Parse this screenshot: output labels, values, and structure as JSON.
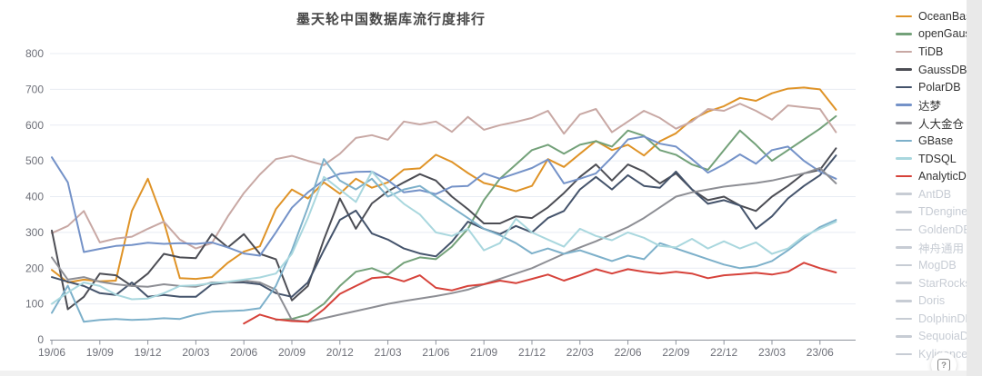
{
  "help": {
    "label": "?"
  },
  "axis": {
    "label_color": "#6e7079",
    "line_color": "#8e939c",
    "grid_color": "#e8ecf3"
  },
  "chart_data": {
    "type": "line",
    "title": "墨天轮中国数据库流行度排行",
    "x_start_month": "19/06",
    "x_step": "1 month",
    "x_tick_labels": [
      "19/06",
      "19/09",
      "19/12",
      "20/03",
      "20/06",
      "20/09",
      "20/12",
      "21/03",
      "21/06",
      "21/09",
      "21/12",
      "22/03",
      "22/06",
      "22/09",
      "22/12",
      "23/03",
      "23/06"
    ],
    "ylim": [
      0,
      800
    ],
    "y_ticks": [
      0,
      100,
      200,
      300,
      400,
      500,
      600,
      700,
      800
    ],
    "grid": true,
    "legend_position": "right",
    "series": [
      {
        "name": "OceanBase",
        "color": "#df9327",
        "enabled": true,
        "start_index": 0,
        "values": [
          195,
          160,
          168,
          163,
          165,
          360,
          450,
          330,
          172,
          170,
          175,
          215,
          246,
          261,
          365,
          420,
          395,
          440,
          408,
          450,
          425,
          440,
          476,
          479,
          517,
          497,
          466,
          438,
          428,
          415,
          430,
          505,
          483,
          520,
          556,
          530,
          545,
          515,
          555,
          577,
          615,
          638,
          653,
          676,
          668,
          689,
          702,
          705,
          700,
          643
        ]
      },
      {
        "name": "openGauss",
        "color": "#73a179",
        "enabled": true,
        "start_index": 14,
        "values": [
          55,
          58,
          70,
          100,
          150,
          190,
          200,
          182,
          215,
          230,
          225,
          260,
          310,
          390,
          450,
          490,
          530,
          545,
          520,
          545,
          555,
          540,
          585,
          570,
          530,
          517,
          490,
          475,
          530,
          585,
          545,
          500,
          530,
          560,
          590,
          625
        ]
      },
      {
        "name": "TiDB",
        "color": "#c8a8a4",
        "enabled": true,
        "start_index": 0,
        "values": [
          298,
          318,
          360,
          272,
          283,
          288,
          310,
          330,
          280,
          255,
          270,
          345,
          410,
          462,
          505,
          514,
          500,
          488,
          520,
          564,
          572,
          559,
          610,
          602,
          610,
          581,
          623,
          587,
          600,
          609,
          620,
          640,
          576,
          630,
          645,
          580,
          610,
          640,
          620,
          590,
          610,
          645,
          640,
          660,
          640,
          615,
          655,
          650,
          645,
          580
        ]
      },
      {
        "name": "GaussDB",
        "color": "#4c4d54",
        "enabled": true,
        "start_index": 0,
        "values": [
          305,
          85,
          120,
          185,
          180,
          150,
          185,
          240,
          230,
          228,
          295,
          258,
          295,
          240,
          225,
          110,
          150,
          280,
          395,
          310,
          381,
          415,
          440,
          463,
          445,
          400,
          365,
          325,
          325,
          345,
          340,
          370,
          410,
          455,
          490,
          445,
          490,
          470,
          437,
          465,
          420,
          390,
          400,
          375,
          360,
          400,
          430,
          465,
          475,
          535
        ]
      },
      {
        "name": "PolarDB",
        "color": "#44536b",
        "enabled": true,
        "start_index": 0,
        "values": [
          175,
          162,
          150,
          130,
          125,
          160,
          120,
          125,
          120,
          120,
          155,
          160,
          160,
          155,
          130,
          120,
          160,
          250,
          335,
          361,
          297,
          280,
          255,
          241,
          233,
          274,
          330,
          310,
          295,
          318,
          300,
          340,
          360,
          420,
          455,
          420,
          460,
          430,
          425,
          470,
          420,
          380,
          390,
          375,
          310,
          345,
          395,
          430,
          460,
          515
        ]
      },
      {
        "name": "达梦",
        "color": "#7492c8",
        "enabled": true,
        "start_index": 0,
        "values": [
          510,
          440,
          245,
          254,
          262,
          265,
          271,
          268,
          270,
          268,
          272,
          258,
          241,
          235,
          300,
          369,
          412,
          446,
          464,
          469,
          470,
          446,
          412,
          418,
          407,
          428,
          430,
          465,
          450,
          465,
          480,
          504,
          437,
          450,
          465,
          510,
          560,
          568,
          548,
          540,
          505,
          467,
          490,
          518,
          492,
          530,
          540,
          500,
          470,
          450
        ]
      },
      {
        "name": "人大金仓",
        "color": "#8d8e94",
        "enabled": true,
        "start_index": 0,
        "values": [
          230,
          168,
          175,
          162,
          155,
          150,
          148,
          155,
          150,
          148,
          160,
          160,
          165,
          160,
          140,
          55,
          50,
          60,
          70,
          80,
          90,
          100,
          108,
          115,
          122,
          130,
          140,
          155,
          170,
          185,
          200,
          220,
          240,
          258,
          275,
          295,
          315,
          340,
          370,
          400,
          412,
          420,
          428,
          433,
          438,
          445,
          455,
          465,
          480,
          437
        ]
      },
      {
        "name": "GBase",
        "color": "#7db0ca",
        "enabled": true,
        "start_index": 0,
        "values": [
          75,
          151,
          50,
          55,
          58,
          55,
          57,
          60,
          58,
          70,
          78,
          80,
          82,
          88,
          150,
          250,
          370,
          505,
          445,
          420,
          450,
          400,
          420,
          430,
          400,
          370,
          340,
          310,
          292,
          270,
          241,
          255,
          240,
          250,
          235,
          220,
          235,
          225,
          270,
          255,
          240,
          225,
          210,
          200,
          205,
          220,
          250,
          285,
          315,
          335
        ]
      },
      {
        "name": "TDSQL",
        "color": "#a9d7de",
        "enabled": true,
        "start_index": 0,
        "values": [
          100,
          132,
          160,
          150,
          126,
          113,
          115,
          130,
          150,
          152,
          158,
          162,
          168,
          174,
          185,
          240,
          340,
          455,
          420,
          385,
          470,
          420,
          380,
          350,
          300,
          290,
          310,
          250,
          270,
          338,
          300,
          280,
          260,
          310,
          290,
          278,
          300,
          285,
          262,
          258,
          282,
          255,
          275,
          255,
          272,
          240,
          255,
          290,
          310,
          330
        ]
      },
      {
        "name": "AnalyticDB",
        "color": "#d6423a",
        "enabled": true,
        "start_index": 12,
        "values": [
          45,
          70,
          57,
          52,
          50,
          85,
          128,
          150,
          172,
          176,
          163,
          180,
          145,
          138,
          150,
          155,
          165,
          158,
          170,
          182,
          165,
          180,
          197,
          185,
          197,
          190,
          185,
          190,
          185,
          172,
          180,
          183,
          187,
          182,
          190,
          215,
          200,
          188
        ]
      },
      {
        "name": "AntDB",
        "color": "#c7ccd4",
        "enabled": false,
        "values": []
      },
      {
        "name": "TDengine",
        "color": "#c7ccd4",
        "enabled": false,
        "values": []
      },
      {
        "name": "GoldenDB",
        "color": "#c7ccd4",
        "enabled": false,
        "values": []
      },
      {
        "name": "神舟通用",
        "color": "#c7ccd4",
        "enabled": false,
        "values": []
      },
      {
        "name": "MogDB",
        "color": "#c7ccd4",
        "enabled": false,
        "values": []
      },
      {
        "name": "StarRocks",
        "color": "#c7ccd4",
        "enabled": false,
        "values": []
      },
      {
        "name": "Doris",
        "color": "#c7ccd4",
        "enabled": false,
        "values": []
      },
      {
        "name": "DolphinDB",
        "color": "#c7ccd4",
        "enabled": false,
        "values": []
      },
      {
        "name": "SequoiaDB",
        "color": "#c7ccd4",
        "enabled": false,
        "values": []
      },
      {
        "name": "Kyligence",
        "color": "#c7ccd4",
        "enabled": false,
        "values": []
      }
    ]
  }
}
